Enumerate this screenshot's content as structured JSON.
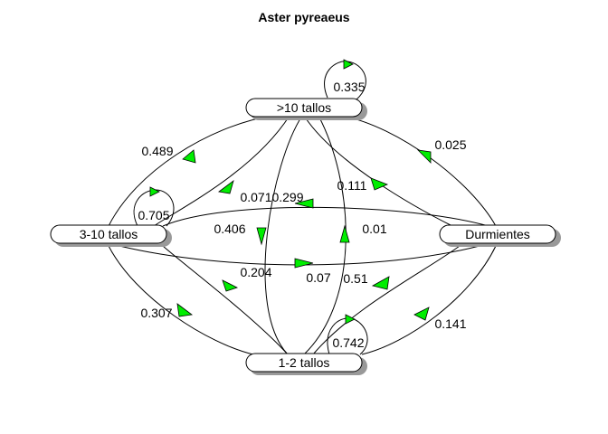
{
  "title": "Aster pyreaeus",
  "colors": {
    "arrow_fill": "#00ee00",
    "shadow": "#999999",
    "line": "#000000"
  },
  "nodes": {
    "gt10": ">10 tallos",
    "t310": "3-10 tallos",
    "dorm": "Durmientes",
    "t12": "1-2 tallos"
  },
  "edges": [
    {
      "id": "gt10-self",
      "from": ">10 tallos",
      "to": ">10 tallos",
      "label": "0.335"
    },
    {
      "id": "t310-self",
      "from": "3-10 tallos",
      "to": "3-10 tallos",
      "label": "0.705"
    },
    {
      "id": "t12-self",
      "from": "1-2 tallos",
      "to": "1-2 tallos",
      "label": "0.742"
    },
    {
      "id": "t310-gt10",
      "from": "3-10 tallos",
      "to": ">10 tallos",
      "label": "0.489"
    },
    {
      "id": "gt10-t310",
      "from": ">10 tallos",
      "to": "3-10 tallos",
      "label": "0.071"
    },
    {
      "id": "dorm-gt10",
      "from": "Durmientes",
      "to": ">10 tallos",
      "label": "0.025"
    },
    {
      "id": "gt10-dorm",
      "from": ">10 tallos",
      "to": "Durmientes",
      "label": "0.111"
    },
    {
      "id": "dorm-t310",
      "from": "Durmientes",
      "to": "3-10 tallos",
      "label": "0.299"
    },
    {
      "id": "t310-dorm",
      "from": "3-10 tallos",
      "to": "Durmientes",
      "label": "0.07"
    },
    {
      "id": "gt10-t12",
      "from": ">10 tallos",
      "to": "1-2 tallos",
      "label": "0.406"
    },
    {
      "id": "t12-gt10",
      "from": "1-2 tallos",
      "to": ">10 tallos",
      "label": "0.01"
    },
    {
      "id": "t12-t310",
      "from": "1-2 tallos",
      "to": "3-10 tallos",
      "label": "0.204"
    },
    {
      "id": "t310-t12",
      "from": "3-10 tallos",
      "to": "1-2 tallos",
      "label": "0.307"
    },
    {
      "id": "t12-dorm",
      "from": "1-2 tallos",
      "to": "Durmientes",
      "label": "0.51"
    },
    {
      "id": "dorm-t12",
      "from": "Durmientes",
      "to": "1-2 tallos",
      "label": "0.141"
    }
  ]
}
